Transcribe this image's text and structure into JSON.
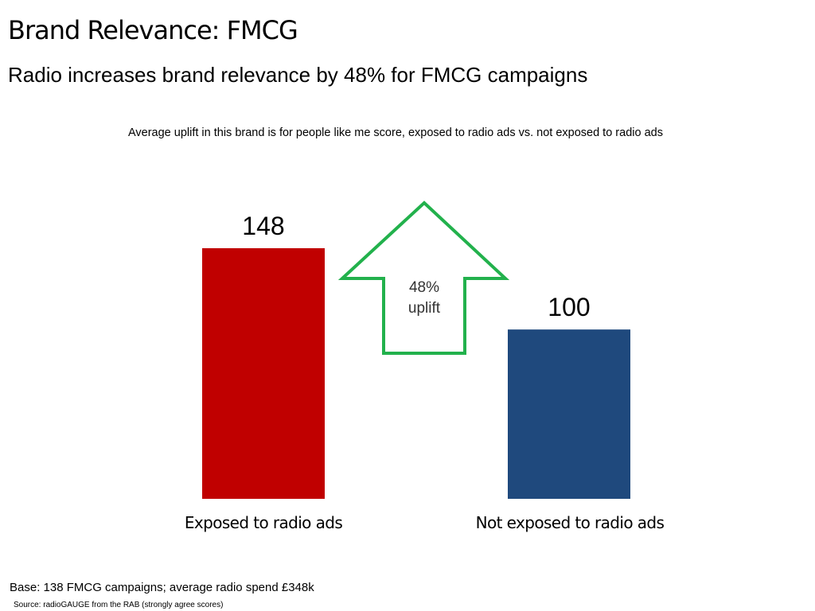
{
  "header": {
    "title": "Brand Relevance: FMCG",
    "subtitle": "Radio increases brand relevance by 48% for FMCG campaigns"
  },
  "chart_data": {
    "type": "bar",
    "title": "Average uplift in this brand is for people like me score, exposed to radio ads vs. not exposed to radio ads",
    "categories": [
      "Exposed to radio ads",
      "Not exposed to radio ads"
    ],
    "values": [
      148,
      100
    ],
    "value_labels": [
      "148",
      "100"
    ],
    "colors": [
      "#c00000",
      "#1f497d"
    ],
    "xlabel": "",
    "ylabel": "",
    "ylim": [
      0,
      148
    ],
    "grid": false,
    "annotation": {
      "line1": "48%",
      "line2": "uplift",
      "shape": "up-arrow-outline",
      "color": "#22b14c"
    }
  },
  "footer": {
    "base": "Base: 138 FMCG campaigns; average radio spend £348k",
    "source": "Source: radioGAUGE from the RAB (strongly agree scores)"
  }
}
